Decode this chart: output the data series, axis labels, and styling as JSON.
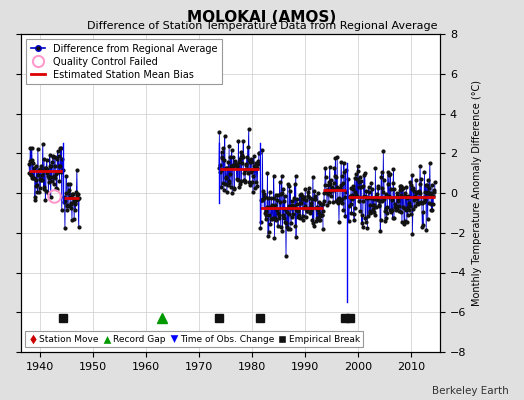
{
  "title": "MOLOKAI (AMOS)",
  "subtitle": "Difference of Station Temperature Data from Regional Average",
  "ylabel_right": "Monthly Temperature Anomaly Difference (°C)",
  "watermark": "Berkeley Earth",
  "xlim": [
    1936.5,
    2015.5
  ],
  "ylim": [
    -8,
    8
  ],
  "yticks": [
    -8,
    -6,
    -4,
    -2,
    0,
    2,
    4,
    6,
    8
  ],
  "xticks": [
    1940,
    1950,
    1960,
    1970,
    1980,
    1990,
    2000,
    2010
  ],
  "bg_color": "#e0e0e0",
  "plot_bg_color": "#ffffff",
  "grid_color": "#cccccc",
  "segments": [
    {
      "x_start": 1938.0,
      "x_end": 1944.4,
      "bias": 1.1
    },
    {
      "x_start": 1944.6,
      "x_end": 1947.5,
      "bias": -0.25
    },
    {
      "x_start": 1973.8,
      "x_end": 1981.4,
      "bias": 1.2
    },
    {
      "x_start": 1981.6,
      "x_end": 1987.5,
      "bias": -0.75
    },
    {
      "x_start": 1987.5,
      "x_end": 1993.5,
      "bias": -0.75
    },
    {
      "x_start": 1993.5,
      "x_end": 1997.8,
      "bias": 0.15
    },
    {
      "x_start": 1998.2,
      "x_end": 2014.5,
      "bias": -0.2
    }
  ],
  "bias_segments": [
    {
      "x_start": 1938.0,
      "x_end": 1944.4,
      "bias": 1.1
    },
    {
      "x_start": 1944.6,
      "x_end": 1947.5,
      "bias": -0.25
    },
    {
      "x_start": 1973.8,
      "x_end": 1981.4,
      "bias": 1.2
    },
    {
      "x_start": 1981.6,
      "x_end": 1993.5,
      "bias": -0.75
    },
    {
      "x_start": 1993.5,
      "x_end": 1997.8,
      "bias": 0.15
    },
    {
      "x_start": 1998.2,
      "x_end": 2014.5,
      "bias": -0.2
    }
  ],
  "vertical_lines": [
    {
      "x": 1944.5,
      "y_min": -0.5,
      "y_max": 2.5
    },
    {
      "x": 1973.9,
      "y_min": -0.5,
      "y_max": 2.5
    },
    {
      "x": 1981.5,
      "y_min": -1.5,
      "y_max": 2.5
    },
    {
      "x": 1997.9,
      "y_min": -5.5,
      "y_max": 1.5
    }
  ],
  "station_moves": [],
  "record_gaps": [
    1963.0
  ],
  "obs_changes": [],
  "empirical_breaks": [
    1944.5,
    1973.9,
    1981.5,
    1997.5,
    1998.5
  ],
  "bottom_marker_y": -6.3,
  "qc_failed_x": [
    1942.7
  ],
  "qc_failed_y": [
    -0.15
  ],
  "seed": 42,
  "noise_scale": 0.75
}
